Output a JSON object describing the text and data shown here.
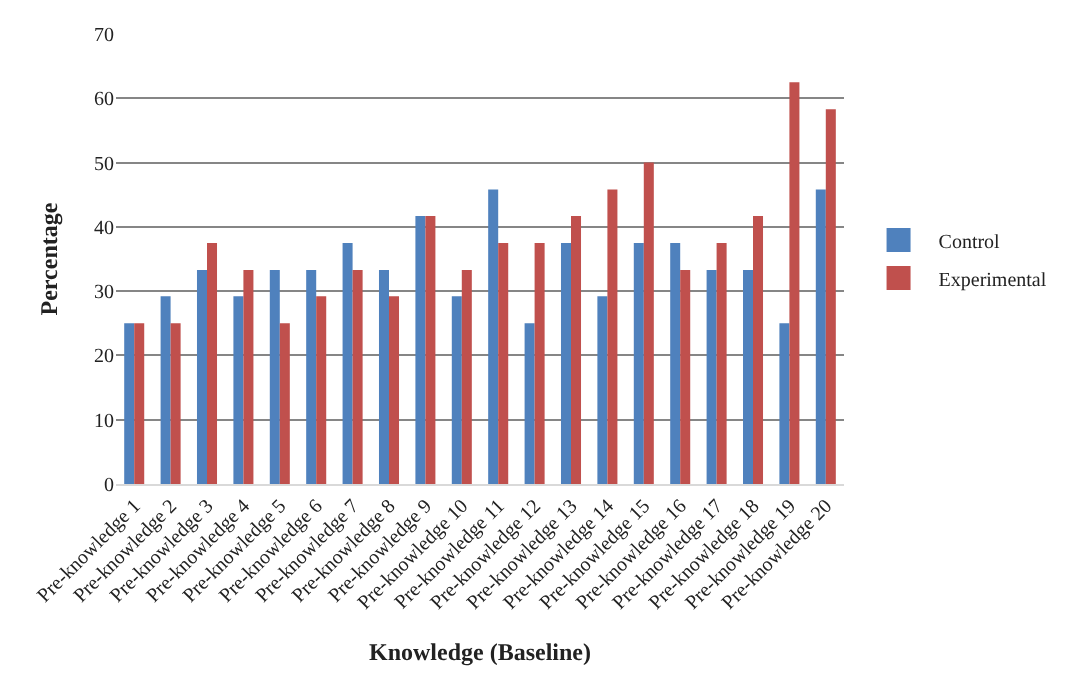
{
  "chart_data": {
    "type": "bar",
    "xlabel": "Knowledge (Baseline)",
    "ylabel": "Percentage",
    "categories": [
      "Pre-knowledge 1",
      "Pre-knowledge 2",
      "Pre-knowledge 3",
      "Pre-knowledge 4",
      "Pre-knowledge 5",
      "Pre-knowledge 6",
      "Pre-knowledge 7",
      "Pre-knowledge 8",
      "Pre-knowledge 9",
      "Pre-knowledge 10",
      "Pre-knowledge 11",
      "Pre-knowledge 12",
      "Pre-knowledge 13",
      "Pre-knowledge 14",
      "Pre-knowledge 15",
      "Pre-knowledge 16",
      "Pre-knowledge 17",
      "Pre-knowledge 18",
      "Pre-knowledge 19",
      "Pre-knowledge 20"
    ],
    "series": [
      {
        "name": "Control",
        "color": "#4f81bd",
        "values": [
          25,
          29.2,
          33.3,
          29.2,
          33.3,
          33.3,
          37.5,
          33.3,
          41.7,
          29.2,
          45.8,
          25,
          37.5,
          29.2,
          37.5,
          37.5,
          33.3,
          33.3,
          25,
          45.8
        ]
      },
      {
        "name": "Experimental",
        "color": "#c0504d",
        "values": [
          25,
          25,
          37.5,
          33.3,
          25,
          29.2,
          33.3,
          29.2,
          41.7,
          33.3,
          37.5,
          37.5,
          41.7,
          45.8,
          50,
          33.3,
          37.5,
          41.7,
          62.5,
          58.3
        ]
      }
    ],
    "ylim": [
      0,
      70
    ],
    "yticks": [
      0,
      10,
      20,
      30,
      40,
      50,
      60,
      70
    ],
    "grid": "y",
    "legend": "right"
  }
}
